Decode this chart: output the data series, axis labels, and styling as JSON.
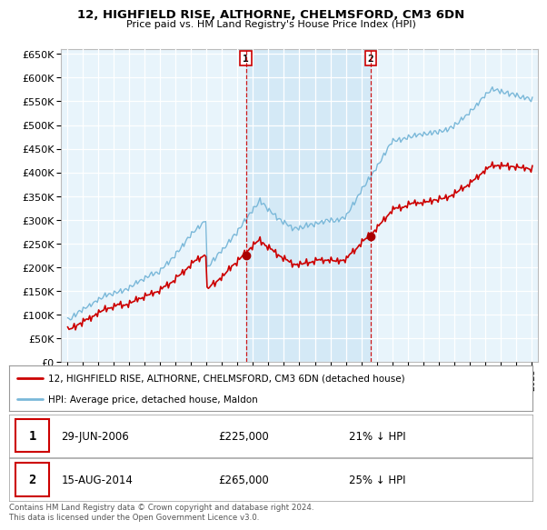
{
  "title": "12, HIGHFIELD RISE, ALTHORNE, CHELMSFORD, CM3 6DN",
  "subtitle": "Price paid vs. HM Land Registry's House Price Index (HPI)",
  "legend_line1": "12, HIGHFIELD RISE, ALTHORNE, CHELMSFORD, CM3 6DN (detached house)",
  "legend_line2": "HPI: Average price, detached house, Maldon",
  "transaction1_date": "29-JUN-2006",
  "transaction1_price": "£225,000",
  "transaction1_hpi": "21% ↓ HPI",
  "transaction2_date": "15-AUG-2014",
  "transaction2_price": "£265,000",
  "transaction2_hpi": "25% ↓ HPI",
  "footer": "Contains HM Land Registry data © Crown copyright and database right 2024.\nThis data is licensed under the Open Government Licence v3.0.",
  "hpi_color": "#7ab8d9",
  "hpi_fill_color": "#d6eaf8",
  "price_color": "#cc0000",
  "marker_color": "#aa0000",
  "vline_color": "#cc0000",
  "plot_bg": "#e8f4fb",
  "ylim": [
    0,
    660000
  ],
  "yticks": [
    0,
    50000,
    100000,
    150000,
    200000,
    250000,
    300000,
    350000,
    400000,
    450000,
    500000,
    550000,
    600000,
    650000
  ],
  "t1": 2006.54,
  "t2": 2014.62,
  "p1": 225000,
  "p2": 265000,
  "year_start": 1995,
  "year_end": 2025
}
